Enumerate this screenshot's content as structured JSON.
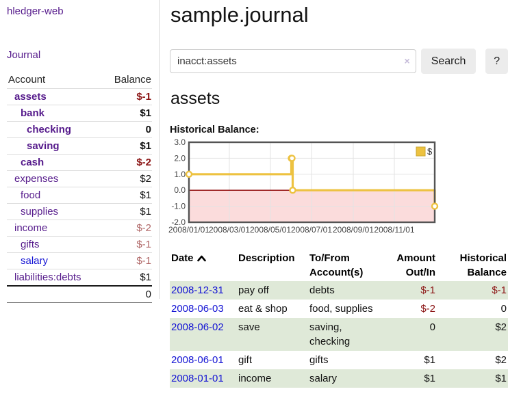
{
  "colors": {
    "link_visited": "#551a8b",
    "link_unvisited": "#1414d4",
    "negative_strong": "#8b1414",
    "negative_soft": "#b06767",
    "row_stripe_green": "#dfe9d8",
    "series_gold": "#edc240",
    "negative_region_pink": "#fbdcdc",
    "zero_line_red": "#8b0000"
  },
  "app_title": "hledger-web",
  "sidebar": {
    "journal_link": "Journal",
    "accounts": {
      "header": {
        "account": "Account",
        "balance": "Balance"
      },
      "rows": [
        {
          "name": "assets",
          "balance": "$-1",
          "depth": 1,
          "matched": true,
          "neg": "strong"
        },
        {
          "name": "bank",
          "balance": "$1",
          "depth": 2,
          "matched": true
        },
        {
          "name": "checking",
          "balance": "0",
          "depth": 3,
          "matched": true
        },
        {
          "name": "saving",
          "balance": "$1",
          "depth": 3,
          "matched": true
        },
        {
          "name": "cash",
          "balance": "$-2",
          "depth": 2,
          "matched": true,
          "neg": "strong"
        },
        {
          "name": "expenses",
          "balance": "$2",
          "depth": 1
        },
        {
          "name": "food",
          "balance": "$1",
          "depth": 2
        },
        {
          "name": "supplies",
          "balance": "$1",
          "depth": 2
        },
        {
          "name": "income",
          "balance": "$-2",
          "depth": 1,
          "neg": "soft"
        },
        {
          "name": "gifts",
          "balance": "$-1",
          "depth": 2,
          "neg": "soft"
        },
        {
          "name": "salary",
          "balance": "$-1",
          "depth": 2,
          "neg": "soft",
          "unvisited": true
        },
        {
          "name": "liabilities:debts",
          "balance": "$1",
          "depth": 1
        }
      ],
      "total": "0"
    }
  },
  "main": {
    "title": "sample.journal",
    "search": {
      "value": "inacct:assets",
      "clear_icon": "×",
      "search_label": "Search",
      "help_label": "?"
    },
    "heading": "assets",
    "chart_label": "Historical Balance:"
  },
  "chart_data": {
    "type": "line",
    "style": "steps",
    "title": "Historical Balance",
    "series": [
      {
        "name": "$",
        "color": "#edc240",
        "points": [
          [
            "2008/01/01",
            1
          ],
          [
            "2008/06/01",
            2
          ],
          [
            "2008/06/02",
            2
          ],
          [
            "2008/06/03",
            0
          ],
          [
            "2008/12/31",
            -1
          ]
        ]
      }
    ],
    "x_range": [
      "2008/01/01",
      "2008/12/31"
    ],
    "ylim": [
      -2,
      3
    ],
    "y_ticks": [
      "3.0",
      "2.0",
      "1.0",
      "0.0",
      "-1.0",
      "-2.0"
    ],
    "x_ticks": [
      "2008/01/01",
      "2008/03/01",
      "2008/05/01",
      "2008/07/01",
      "2008/09/01",
      "2008/11/01"
    ],
    "grid": true,
    "legend_position": "top-right",
    "legend_label": "$",
    "negative_region_color": "#fbdcdc",
    "zero_line_color": "#8b0000"
  },
  "register": {
    "headers": [
      {
        "label": "Date",
        "align": "left",
        "sorted_asc": true
      },
      {
        "label": "Description",
        "align": "left"
      },
      {
        "label": "To/From Account(s)",
        "align": "left"
      },
      {
        "label": "Amount Out/In",
        "align": "right"
      },
      {
        "label": "Historical Balance",
        "align": "right"
      }
    ],
    "rows": [
      {
        "date": "2008-12-31",
        "description": "pay off",
        "accounts": "debts",
        "amount": "$-1",
        "balance": "$-1"
      },
      {
        "date": "2008-06-03",
        "description": "eat & shop",
        "accounts": "food, supplies",
        "amount": "$-2",
        "balance": "0"
      },
      {
        "date": "2008-06-02",
        "description": "save",
        "accounts": "saving, checking",
        "amount": "0",
        "balance": "$2"
      },
      {
        "date": "2008-06-01",
        "description": "gift",
        "accounts": "gifts",
        "amount": "$1",
        "balance": "$2"
      },
      {
        "date": "2008-01-01",
        "description": "income",
        "accounts": "salary",
        "amount": "$1",
        "balance": "$1"
      }
    ]
  }
}
